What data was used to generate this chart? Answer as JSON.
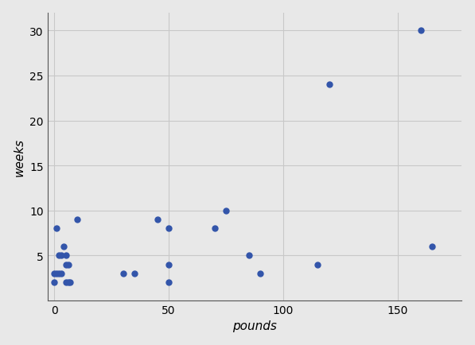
{
  "points": [
    [
      0,
      3
    ],
    [
      0,
      2
    ],
    [
      1,
      8
    ],
    [
      1,
      3
    ],
    [
      2,
      5
    ],
    [
      2,
      3
    ],
    [
      3,
      5
    ],
    [
      3,
      3
    ],
    [
      4,
      6
    ],
    [
      5,
      5
    ],
    [
      5,
      4
    ],
    [
      5,
      2
    ],
    [
      6,
      4
    ],
    [
      6,
      2
    ],
    [
      7,
      2
    ],
    [
      10,
      9
    ],
    [
      30,
      3
    ],
    [
      35,
      3
    ],
    [
      45,
      9
    ],
    [
      50,
      8
    ],
    [
      50,
      4
    ],
    [
      50,
      2
    ],
    [
      70,
      8
    ],
    [
      75,
      10
    ],
    [
      85,
      5
    ],
    [
      90,
      3
    ],
    [
      115,
      4
    ],
    [
      120,
      24
    ],
    [
      160,
      30
    ],
    [
      165,
      6
    ]
  ],
  "xlabel": "pounds",
  "ylabel": "weeks",
  "bg_color": "#e8e8e8",
  "dot_color": "#3355aa",
  "dot_size": 25,
  "xlim": [
    -3,
    178
  ],
  "ylim": [
    0,
    32
  ],
  "xticks": [
    0,
    50,
    100,
    150
  ],
  "yticks": [
    5,
    10,
    15,
    20,
    25,
    30
  ],
  "grid_color": "#c8c8c8",
  "spine_color": "#555555",
  "tick_fontsize": 10,
  "label_fontsize": 11
}
